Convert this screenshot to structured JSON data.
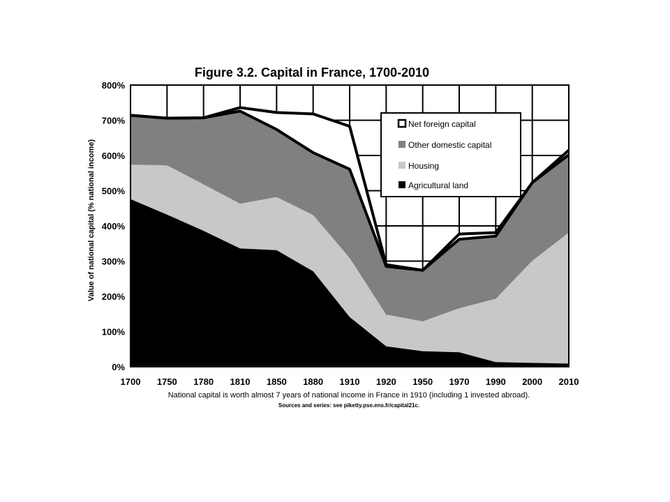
{
  "chart_data": {
    "type": "area",
    "title": "Figure 3.2. Capital in France, 1700-2010",
    "ylabel": "Value of national capital (% national income)",
    "caption": "National capital is worth almost 7 years of national income in France in 1910 (including 1 invested abroad).",
    "source": "Sources and series: see piketty.pse.ens.fr/capital21c.",
    "categories": [
      "1700",
      "1750",
      "1780",
      "1810",
      "1850",
      "1880",
      "1910",
      "1920",
      "1950",
      "1970",
      "1990",
      "2000",
      "2010"
    ],
    "y_ticks": [
      "0%",
      "100%",
      "200%",
      "300%",
      "400%",
      "500%",
      "600%",
      "700%",
      "800%"
    ],
    "ylim": [
      0,
      800
    ],
    "grid": true,
    "legend_position": "top-right",
    "series": [
      {
        "name": "Agricultural land",
        "color": "#000000",
        "values": [
          476,
          432,
          386,
          336,
          331,
          271,
          141,
          58,
          44,
          41,
          13,
          11,
          9
        ]
      },
      {
        "name": "Housing",
        "color": "#c8c8c8",
        "values": [
          98,
          140,
          132,
          127,
          151,
          160,
          168,
          90,
          85,
          125,
          180,
          290,
          372
        ]
      },
      {
        "name": "Other domestic capital",
        "color": "#808080",
        "values": [
          140,
          134,
          189,
          263,
          192,
          177,
          252,
          137,
          145,
          196,
          178,
          222,
          221
        ]
      },
      {
        "name": "Net foreign capital",
        "color": "#ffffff",
        "values": [
          0,
          0,
          0,
          10,
          48,
          110,
          122,
          5,
          0,
          15,
          10,
          0,
          13
        ]
      }
    ]
  }
}
